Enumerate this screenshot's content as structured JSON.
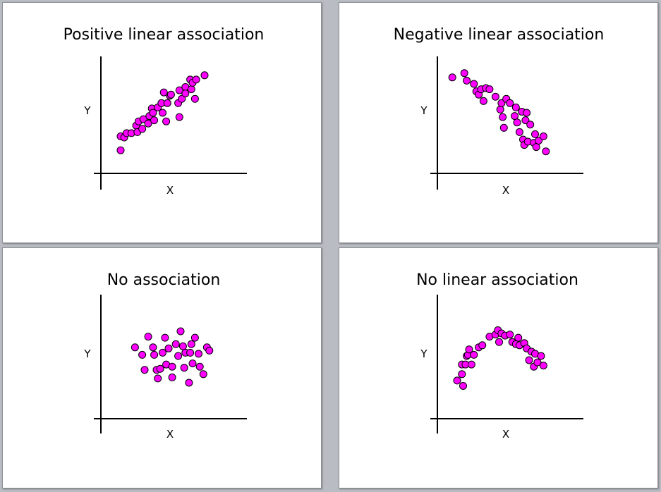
{
  "colors": {
    "point_fill": "#ff00ff",
    "point_stroke": "#000000",
    "background": "#b9bcc2"
  },
  "chart_data": [
    {
      "type": "scatter",
      "title": "Positive linear association",
      "xlabel": "X",
      "ylabel": "Y",
      "grid": false,
      "points": [
        [
          10,
          28
        ],
        [
          10,
          15
        ],
        [
          13,
          27
        ],
        [
          15,
          31
        ],
        [
          19,
          31
        ],
        [
          23,
          38
        ],
        [
          24,
          32
        ],
        [
          25,
          42
        ],
        [
          28,
          35
        ],
        [
          29,
          44
        ],
        [
          33,
          40
        ],
        [
          34,
          47
        ],
        [
          36,
          54
        ],
        [
          37,
          50
        ],
        [
          38,
          43
        ],
        [
          41,
          55
        ],
        [
          44,
          59
        ],
        [
          45,
          50
        ],
        [
          46,
          69
        ],
        [
          48,
          42
        ],
        [
          49,
          59
        ],
        [
          51,
          66
        ],
        [
          52,
          67
        ],
        [
          58,
          59
        ],
        [
          59,
          71
        ],
        [
          59,
          46
        ],
        [
          61,
          63
        ],
        [
          64,
          74
        ],
        [
          64,
          68
        ],
        [
          68,
          81
        ],
        [
          69,
          72
        ],
        [
          70,
          78
        ],
        [
          72,
          63
        ],
        [
          73,
          81
        ],
        [
          80,
          85
        ]
      ]
    },
    {
      "type": "scatter",
      "title": "Negative linear association",
      "xlabel": "X",
      "ylabel": "Y",
      "grid": false,
      "points": [
        [
          6,
          83
        ],
        [
          16,
          87
        ],
        [
          18,
          80
        ],
        [
          24,
          77
        ],
        [
          26,
          70
        ],
        [
          28,
          67
        ],
        [
          30,
          72
        ],
        [
          32,
          61
        ],
        [
          34,
          73
        ],
        [
          37,
          72
        ],
        [
          42,
          65
        ],
        [
          46,
          53
        ],
        [
          47,
          59
        ],
        [
          48,
          46
        ],
        [
          49,
          36
        ],
        [
          51,
          63
        ],
        [
          54,
          59
        ],
        [
          58,
          47
        ],
        [
          59,
          55
        ],
        [
          60,
          41
        ],
        [
          62,
          32
        ],
        [
          64,
          51
        ],
        [
          65,
          25
        ],
        [
          66,
          20
        ],
        [
          67,
          43
        ],
        [
          68,
          50
        ],
        [
          69,
          23
        ],
        [
          71,
          39
        ],
        [
          74,
          22
        ],
        [
          75,
          30
        ],
        [
          76,
          18
        ],
        [
          78,
          24
        ],
        [
          82,
          28
        ],
        [
          84,
          14
        ]
      ]
    },
    {
      "type": "scatter",
      "title": "No association",
      "xlabel": "X",
      "ylabel": "Y",
      "grid": false,
      "points": [
        [
          22,
          60
        ],
        [
          28,
          53
        ],
        [
          30,
          39
        ],
        [
          33,
          70
        ],
        [
          37,
          60
        ],
        [
          38,
          53
        ],
        [
          40,
          39
        ],
        [
          41,
          31
        ],
        [
          43,
          40
        ],
        [
          45,
          55
        ],
        [
          47,
          69
        ],
        [
          48,
          44
        ],
        [
          50,
          59
        ],
        [
          53,
          42
        ],
        [
          53,
          32
        ],
        [
          56,
          63
        ],
        [
          58,
          52
        ],
        [
          60,
          75
        ],
        [
          62,
          61
        ],
        [
          63,
          41
        ],
        [
          64,
          55
        ],
        [
          67,
          27
        ],
        [
          68,
          55
        ],
        [
          69,
          63
        ],
        [
          70,
          45
        ],
        [
          72,
          69
        ],
        [
          75,
          54
        ],
        [
          76,
          42
        ],
        [
          79,
          35
        ],
        [
          82,
          60
        ],
        [
          84,
          57
        ]
      ]
    },
    {
      "type": "scatter",
      "title": "No linear association",
      "xlabel": "X",
      "ylabel": "Y",
      "grid": false,
      "points": [
        [
          10,
          29
        ],
        [
          14,
          44
        ],
        [
          14,
          35
        ],
        [
          15,
          24
        ],
        [
          17,
          44
        ],
        [
          18,
          52
        ],
        [
          19,
          53
        ],
        [
          20,
          58
        ],
        [
          22,
          44
        ],
        [
          24,
          53
        ],
        [
          28,
          60
        ],
        [
          31,
          62
        ],
        [
          37,
          70
        ],
        [
          42,
          72
        ],
        [
          44,
          76
        ],
        [
          45,
          65
        ],
        [
          47,
          73
        ],
        [
          50,
          71
        ],
        [
          54,
          72
        ],
        [
          56,
          65
        ],
        [
          59,
          63
        ],
        [
          61,
          69
        ],
        [
          62,
          62
        ],
        [
          66,
          64
        ],
        [
          68,
          59
        ],
        [
          70,
          48
        ],
        [
          72,
          56
        ],
        [
          74,
          42
        ],
        [
          75,
          54
        ],
        [
          77,
          46
        ],
        [
          80,
          52
        ],
        [
          82,
          43
        ]
      ]
    }
  ]
}
